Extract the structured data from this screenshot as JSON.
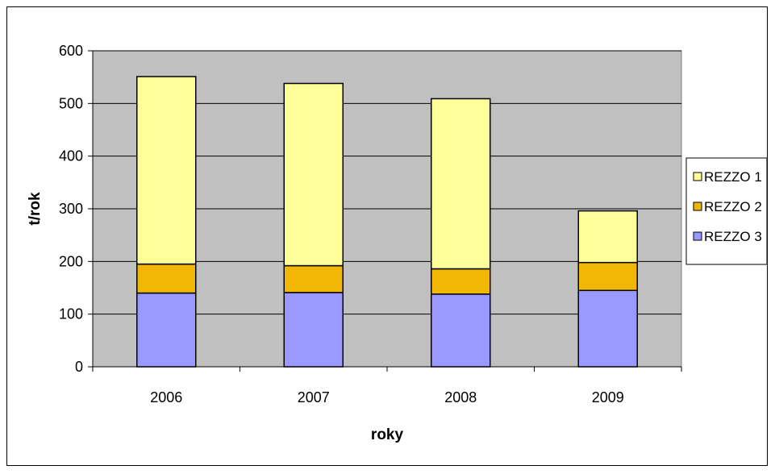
{
  "chart_data": {
    "type": "bar",
    "stacked": true,
    "title": "",
    "xlabel": "roky",
    "ylabel": "t/rok",
    "categories": [
      "2006",
      "2007",
      "2008",
      "2009"
    ],
    "series": [
      {
        "name": "REZZO 3",
        "color": "#9999ff",
        "values": [
          140,
          141,
          138,
          145
        ]
      },
      {
        "name": "REZZO 2",
        "color": "#f2b705",
        "values": [
          55,
          51,
          48,
          53
        ]
      },
      {
        "name": "REZZO 1",
        "color": "#ffff99",
        "values": [
          356,
          346,
          323,
          98
        ]
      }
    ],
    "legend_order": [
      "REZZO 1",
      "REZZO 2",
      "REZZO 3"
    ],
    "ylim": [
      0,
      600
    ],
    "yticks": [
      "0",
      "100",
      "200",
      "300",
      "400",
      "500",
      "600"
    ],
    "plot_background": "#c0c0c0",
    "grid": true,
    "legend_position": "right"
  }
}
